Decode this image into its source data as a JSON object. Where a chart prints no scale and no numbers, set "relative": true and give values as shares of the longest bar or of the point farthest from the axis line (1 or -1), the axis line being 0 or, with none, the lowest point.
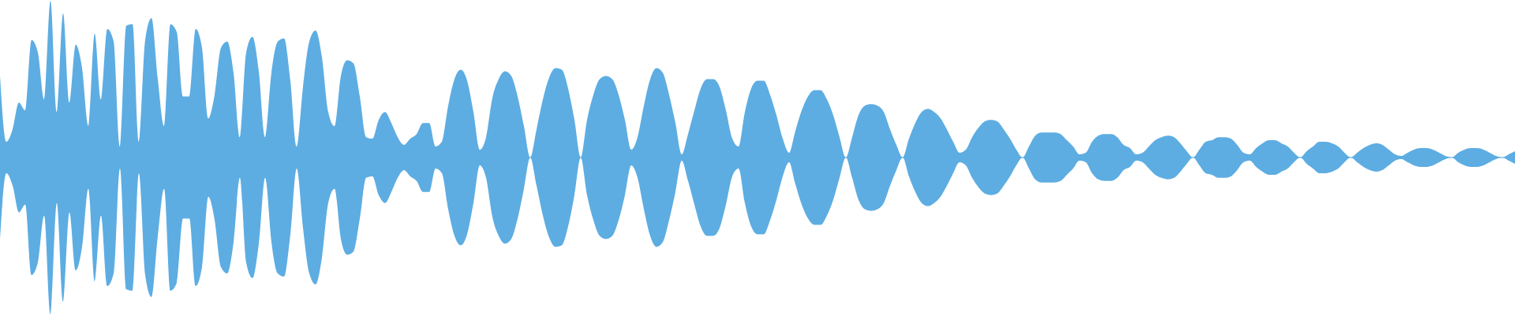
{
  "chart_data": {
    "type": "area",
    "relative": true,
    "categories": [
      null,
      null,
      null,
      null,
      null,
      null,
      null,
      null,
      null,
      null,
      null,
      null,
      null,
      null,
      null,
      null,
      null,
      null,
      null,
      null,
      null,
      null,
      null,
      null,
      null,
      null,
      null,
      null,
      null,
      null,
      null,
      null,
      null,
      null,
      null,
      null,
      null,
      null,
      null,
      null,
      null,
      null,
      null,
      null,
      null,
      null,
      null,
      null,
      null,
      null,
      null,
      null,
      null,
      null,
      null,
      null,
      null,
      null,
      null,
      null,
      null,
      null,
      null,
      null,
      null,
      null,
      null,
      null,
      null,
      null,
      null,
      null,
      null,
      null,
      null,
      null,
      null,
      null,
      null,
      null,
      null,
      null,
      null,
      null,
      null,
      null,
      null,
      null,
      null,
      null,
      null,
      null,
      null,
      null,
      null,
      null,
      null,
      null,
      null,
      null,
      null,
      null,
      null,
      null,
      null,
      null,
      null,
      null,
      null,
      null,
      null,
      null,
      null,
      null,
      null,
      null,
      null,
      null,
      null,
      null,
      null,
      null,
      null,
      null,
      null,
      null,
      null,
      null,
      null,
      null,
      null,
      null,
      null,
      null,
      null,
      null,
      null,
      null,
      null,
      null,
      null,
      null,
      null,
      null,
      null,
      null,
      null,
      null,
      null,
      null,
      null,
      null,
      null,
      null,
      null,
      null,
      null,
      null,
      null,
      null,
      null,
      null,
      null,
      null,
      null,
      null,
      null,
      null,
      null,
      null,
      null,
      null,
      null,
      null,
      null,
      null,
      null,
      null,
      null,
      null,
      null,
      null,
      null,
      null,
      null,
      null,
      null,
      null,
      null,
      null,
      null,
      null,
      null,
      null,
      null,
      null,
      null,
      null,
      null,
      null,
      null,
      null,
      null,
      null,
      null,
      null,
      null,
      null,
      null,
      null,
      null,
      null,
      null,
      null,
      null,
      null,
      null,
      null,
      null,
      null,
      null,
      null,
      null,
      null,
      null,
      null,
      null,
      null,
      null,
      null,
      null,
      null,
      null,
      null,
      null,
      null,
      null,
      null,
      null,
      null,
      null
    ],
    "series": [
      {
        "color": "#5dade2",
        "values": [
          0.52,
          0.1,
          0.18,
          0.35,
          0.3,
          0.75,
          0.67,
          0.37,
          1.0,
          0.29,
          0.92,
          0.35,
          0.72,
          0.57,
          0.2,
          0.79,
          0.37,
          0.82,
          0.74,
          0.07,
          0.84,
          0.85,
          0.1,
          0.75,
          0.89,
          0.5,
          0.2,
          0.85,
          0.8,
          0.39,
          0.39,
          0.82,
          0.7,
          0.25,
          0.4,
          0.7,
          0.74,
          0.54,
          0.13,
          0.67,
          0.77,
          0.55,
          0.13,
          0.54,
          0.74,
          0.76,
          0.49,
          0.07,
          0.45,
          0.74,
          0.81,
          0.64,
          0.29,
          0.2,
          0.52,
          0.62,
          0.6,
          0.39,
          0.13,
          0.12,
          0.24,
          0.29,
          0.22,
          0.13,
          0.08,
          0.12,
          0.15,
          0.22,
          0.22,
          0.07,
          0.1,
          0.33,
          0.5,
          0.56,
          0.49,
          0.29,
          0.05,
          0.13,
          0.38,
          0.5,
          0.55,
          0.52,
          0.39,
          0.2,
          0,
          0.18,
          0.37,
          0.51,
          0.57,
          0.56,
          0.44,
          0.24,
          0,
          0.24,
          0.4,
          0.5,
          0.52,
          0.5,
          0.4,
          0.24,
          0.05,
          0.13,
          0.33,
          0.5,
          0.57,
          0.54,
          0.4,
          0.22,
          0.02,
          0.15,
          0.3,
          0.44,
          0.5,
          0.5,
          0.45,
          0.3,
          0.12,
          0.07,
          0.29,
          0.44,
          0.49,
          0.49,
          0.4,
          0.27,
          0.12,
          0.03,
          0.17,
          0.3,
          0.39,
          0.43,
          0.43,
          0.37,
          0.27,
          0.13,
          0,
          0.13,
          0.27,
          0.33,
          0.34,
          0.33,
          0.29,
          0.18,
          0.08,
          0,
          0.12,
          0.22,
          0.29,
          0.31,
          0.29,
          0.25,
          0.18,
          0.1,
          0.03,
          0.05,
          0.13,
          0.19,
          0.23,
          0.24,
          0.23,
          0.18,
          0.12,
          0.05,
          0,
          0.07,
          0.14,
          0.16,
          0.16,
          0.16,
          0.15,
          0.11,
          0.07,
          0.02,
          0.03,
          0.1,
          0.14,
          0.15,
          0.15,
          0.13,
          0.08,
          0.06,
          0.02,
          0.03,
          0.07,
          0.11,
          0.13,
          0.14,
          0.13,
          0.09,
          0.04,
          0,
          0.05,
          0.1,
          0.11,
          0.13,
          0.13,
          0.12,
          0.08,
          0.03,
          0.02,
          0.06,
          0.09,
          0.11,
          0.11,
          0.09,
          0.07,
          0.03,
          0,
          0.04,
          0.07,
          0.1,
          0.1,
          0.09,
          0.07,
          0.03,
          0,
          0.03,
          0.06,
          0.08,
          0.09,
          0.08,
          0.05,
          0.02,
          0.01,
          0.03,
          0.05,
          0.06,
          0.06,
          0.05,
          0.03,
          0.01,
          0,
          0.03,
          0.05,
          0.06,
          0.06,
          0.05,
          0.03,
          0.01,
          0,
          0.02,
          0.04
        ]
      },
      {
        "color": "#5dade2",
        "values": [
          -0.52,
          -0.1,
          -0.18,
          -0.35,
          -0.3,
          -0.75,
          -0.67,
          -0.37,
          -1.0,
          -0.29,
          -0.92,
          -0.35,
          -0.72,
          -0.57,
          -0.2,
          -0.79,
          -0.37,
          -0.82,
          -0.74,
          -0.07,
          -0.84,
          -0.85,
          -0.1,
          -0.75,
          -0.89,
          -0.5,
          -0.2,
          -0.85,
          -0.8,
          -0.39,
          -0.39,
          -0.82,
          -0.7,
          -0.25,
          -0.4,
          -0.7,
          -0.74,
          -0.54,
          -0.13,
          -0.67,
          -0.77,
          -0.55,
          -0.13,
          -0.54,
          -0.74,
          -0.76,
          -0.49,
          -0.07,
          -0.45,
          -0.74,
          -0.81,
          -0.64,
          -0.29,
          -0.2,
          -0.52,
          -0.62,
          -0.6,
          -0.39,
          -0.13,
          -0.12,
          -0.24,
          -0.29,
          -0.22,
          -0.13,
          -0.08,
          -0.12,
          -0.15,
          -0.22,
          -0.22,
          -0.07,
          -0.1,
          -0.33,
          -0.5,
          -0.56,
          -0.49,
          -0.29,
          -0.05,
          -0.13,
          -0.38,
          -0.5,
          -0.55,
          -0.52,
          -0.39,
          -0.2,
          0,
          -0.18,
          -0.37,
          -0.51,
          -0.57,
          -0.56,
          -0.44,
          -0.24,
          0,
          -0.24,
          -0.4,
          -0.5,
          -0.52,
          -0.5,
          -0.4,
          -0.24,
          -0.05,
          -0.13,
          -0.33,
          -0.5,
          -0.57,
          -0.54,
          -0.4,
          -0.22,
          -0.02,
          -0.15,
          -0.3,
          -0.44,
          -0.5,
          -0.5,
          -0.45,
          -0.3,
          -0.12,
          -0.07,
          -0.29,
          -0.44,
          -0.49,
          -0.49,
          -0.4,
          -0.27,
          -0.12,
          -0.03,
          -0.17,
          -0.3,
          -0.39,
          -0.43,
          -0.43,
          -0.37,
          -0.27,
          -0.13,
          0,
          -0.13,
          -0.27,
          -0.33,
          -0.34,
          -0.33,
          -0.29,
          -0.18,
          -0.08,
          0,
          -0.12,
          -0.22,
          -0.29,
          -0.31,
          -0.29,
          -0.25,
          -0.18,
          -0.1,
          -0.03,
          -0.05,
          -0.13,
          -0.19,
          -0.23,
          -0.24,
          -0.23,
          -0.18,
          -0.12,
          -0.05,
          0,
          -0.07,
          -0.14,
          -0.16,
          -0.16,
          -0.16,
          -0.15,
          -0.11,
          -0.07,
          -0.02,
          -0.03,
          -0.1,
          -0.14,
          -0.15,
          -0.15,
          -0.13,
          -0.08,
          -0.06,
          -0.02,
          -0.03,
          -0.07,
          -0.11,
          -0.13,
          -0.14,
          -0.13,
          -0.09,
          -0.04,
          0,
          -0.05,
          -0.1,
          -0.11,
          -0.13,
          -0.13,
          -0.12,
          -0.08,
          -0.03,
          -0.02,
          -0.06,
          -0.09,
          -0.11,
          -0.11,
          -0.09,
          -0.07,
          -0.03,
          0,
          -0.04,
          -0.07,
          -0.1,
          -0.1,
          -0.09,
          -0.07,
          -0.03,
          0,
          -0.03,
          -0.06,
          -0.08,
          -0.09,
          -0.08,
          -0.05,
          -0.02,
          -0.01,
          -0.03,
          -0.05,
          -0.06,
          -0.06,
          -0.05,
          -0.03,
          -0.01,
          0,
          -0.03,
          -0.05,
          -0.06,
          -0.06,
          -0.05,
          -0.03,
          -0.01,
          0,
          -0.02,
          -0.04
        ]
      }
    ],
    "ref_lines": [
      {
        "axis": "y",
        "value": 0,
        "color": "#5dade2"
      }
    ]
  }
}
